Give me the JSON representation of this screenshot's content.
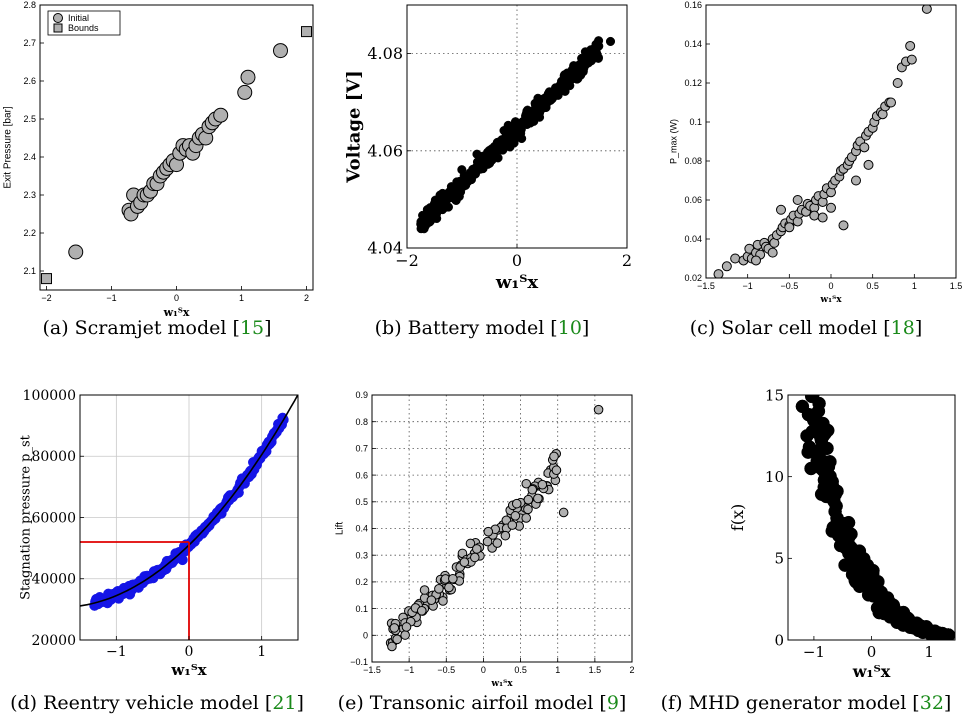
{
  "colors": {
    "marker_gray": "#b0b0b0",
    "marker_black": "#000000",
    "marker_blue": "#1515e6",
    "annot_red": "#e00000",
    "ref_green": "#1a8a1a"
  },
  "panels": [
    {
      "caption": {
        "prefix": "(a) Scramjet model [",
        "ref": "15",
        "suffix": "]"
      },
      "chart_data": {
        "type": "scatter",
        "xlabel": "w₁ᵀx",
        "ylabel": "Exit Pressure [bar]",
        "xlim": [
          -2.1,
          2.1
        ],
        "ylim": [
          2.05,
          2.8
        ],
        "xticks": [
          -2,
          -1,
          0,
          1,
          2
        ],
        "yticks": [
          2.1,
          2.2,
          2.3,
          2.4,
          2.5,
          2.6,
          2.7,
          2.8
        ],
        "grid": false,
        "legend": "top-left",
        "series": [
          {
            "name": "Initial",
            "marker": "circle-gray",
            "x": [
              -1.55,
              -0.73,
              -0.7,
              -0.66,
              -0.6,
              -0.55,
              -0.5,
              -0.45,
              -0.4,
              -0.35,
              -0.3,
              -0.25,
              -0.2,
              -0.15,
              -0.1,
              -0.05,
              0,
              0.05,
              0.1,
              0.15,
              0.2,
              0.25,
              0.3,
              0.35,
              0.4,
              0.45,
              0.5,
              0.55,
              0.6,
              0.68,
              1.05,
              1.1,
              1.6
            ],
            "y": [
              2.15,
              2.26,
              2.25,
              2.3,
              2.27,
              2.28,
              2.3,
              2.3,
              2.31,
              2.33,
              2.33,
              2.35,
              2.36,
              2.37,
              2.38,
              2.39,
              2.38,
              2.41,
              2.43,
              2.42,
              2.43,
              2.41,
              2.43,
              2.45,
              2.46,
              2.45,
              2.48,
              2.49,
              2.5,
              2.51,
              2.57,
              2.61,
              2.68
            ]
          },
          {
            "name": "Bounds",
            "marker": "square-gray",
            "x": [
              -2,
              2
            ],
            "y": [
              2.08,
              2.73
            ]
          }
        ]
      }
    },
    {
      "caption": {
        "prefix": "(b) Battery model [",
        "ref": "10",
        "suffix": "]"
      },
      "chart_data": {
        "type": "scatter",
        "xlabel": "w₁ᵀx",
        "ylabel": "Voltage [V]",
        "xlim": [
          -2,
          2
        ],
        "ylim": [
          4.04,
          4.09
        ],
        "xticks": [
          -2,
          0,
          2
        ],
        "yticks": [
          4.04,
          4.06,
          4.08
        ],
        "grid": "dotted",
        "series": [
          {
            "marker": "circle-black",
            "linear_band": {
              "x_from": -1.75,
              "x_to": 1.5,
              "y_at_from": 4.045,
              "y_at_to": 4.081,
              "count": 450,
              "noise": 0.0009
            },
            "x": [
              1.7
            ],
            "y": [
              4.0825
            ]
          }
        ]
      }
    },
    {
      "caption": {
        "prefix": "(c) Solar cell model [",
        "ref": "18",
        "suffix": "]"
      },
      "chart_data": {
        "type": "scatter",
        "xlabel": "w₁ᵀx",
        "ylabel": "P_max (W)",
        "xlim": [
          -1.5,
          1.5
        ],
        "ylim": [
          0.02,
          0.16
        ],
        "xticks": [
          -1.5,
          -1,
          -0.5,
          0,
          0.5,
          1,
          1.5
        ],
        "yticks": [
          0.02,
          0.04,
          0.06,
          0.08,
          0.1,
          0.12,
          0.14,
          0.16
        ],
        "grid": false,
        "series": [
          {
            "marker": "circle-gray",
            "x": [
              -1.35,
              -1.25,
              -1.15,
              -1.05,
              -1.0,
              -0.98,
              -0.95,
              -0.9,
              -0.88,
              -0.85,
              -0.8,
              -0.78,
              -0.75,
              -0.7,
              -0.68,
              -0.65,
              -0.6,
              -0.58,
              -0.55,
              -0.5,
              -0.48,
              -0.45,
              -0.4,
              -0.38,
              -0.35,
              -0.3,
              -0.28,
              -0.25,
              -0.2,
              -0.18,
              -0.15,
              -0.1,
              -0.08,
              -0.05,
              0,
              0.02,
              0.05,
              0.1,
              0.12,
              0.15,
              0.2,
              0.22,
              0.25,
              0.3,
              0.32,
              0.35,
              0.4,
              0.42,
              0.45,
              0.5,
              0.52,
              0.55,
              0.6,
              0.62,
              0.65,
              0.7,
              0.72,
              0.8,
              0.85,
              0.9,
              0.95,
              0.97,
              1.15,
              -0.6,
              -0.4,
              -0.2,
              0,
              0.15,
              0.3,
              -0.9,
              -0.7,
              -0.5,
              -0.1,
              0.45
            ],
            "y": [
              0.022,
              0.026,
              0.03,
              0.029,
              0.031,
              0.035,
              0.03,
              0.033,
              0.037,
              0.032,
              0.038,
              0.036,
              0.035,
              0.04,
              0.038,
              0.042,
              0.044,
              0.046,
              0.048,
              0.047,
              0.05,
              0.052,
              0.049,
              0.053,
              0.055,
              0.054,
              0.058,
              0.057,
              0.056,
              0.06,
              0.062,
              0.059,
              0.063,
              0.066,
              0.064,
              0.068,
              0.07,
              0.072,
              0.075,
              0.076,
              0.078,
              0.08,
              0.082,
              0.085,
              0.088,
              0.09,
              0.087,
              0.093,
              0.095,
              0.097,
              0.1,
              0.103,
              0.105,
              0.104,
              0.108,
              0.11,
              0.11,
              0.12,
              0.128,
              0.131,
              0.139,
              0.132,
              0.158,
              0.055,
              0.06,
              0.052,
              0.056,
              0.047,
              0.07,
              0.029,
              0.033,
              0.046,
              0.051,
              0.078
            ]
          }
        ]
      }
    },
    {
      "caption": {
        "prefix": "(d) Reentry vehicle model [",
        "ref": "21",
        "suffix": "]"
      },
      "chart_data": {
        "type": "scatter",
        "xlabel": "w₁ᵀx",
        "ylabel": "Stagnation pressure p_st",
        "xlim": [
          -1.5,
          1.5
        ],
        "ylim": [
          20000,
          100000
        ],
        "xticks": [
          -1,
          0,
          1
        ],
        "yticks": [
          20000,
          40000,
          60000,
          80000,
          100000
        ],
        "grid": "solid",
        "series": [
          {
            "marker": "circle-blue",
            "dense_x_from": -1.3,
            "dense_x_to": 1.3,
            "count": 220
          },
          {
            "fit_line": {
              "a": 51000,
              "b": 23000,
              "c": 6500
            },
            "color": "black"
          }
        ],
        "annotation": {
          "x": 0,
          "y": 52000,
          "color": "red"
        }
      }
    },
    {
      "caption": {
        "prefix": "(e) Transonic airfoil model [",
        "ref": "9",
        "suffix": "]"
      },
      "chart_data": {
        "type": "scatter",
        "xlabel": "w₁ᵀx",
        "ylabel": "Lift",
        "xlim": [
          -1.5,
          2
        ],
        "ylim": [
          -0.1,
          0.9
        ],
        "xticks": [
          -1.5,
          -1,
          -0.5,
          0,
          0.5,
          1,
          1.5,
          2
        ],
        "yticks": [
          -0.1,
          0,
          0.1,
          0.2,
          0.3,
          0.4,
          0.5,
          0.6,
          0.7,
          0.8,
          0.9
        ],
        "grid": "dotted",
        "series": [
          {
            "marker": "circle-gray",
            "linear_band": {
              "x_from": -1.25,
              "x_to": 1.0,
              "y_at_from": -0.01,
              "y_at_to": 0.61,
              "count": 130,
              "noise": 0.03
            },
            "x": [
              1.55,
              1.08,
              0.98,
              0.95
            ],
            "y": [
              0.845,
              0.46,
              0.68,
              0.67
            ]
          }
        ]
      }
    },
    {
      "caption": {
        "prefix": "(f) MHD generator model [",
        "ref": "32",
        "suffix": "]"
      },
      "chart_data": {
        "type": "scatter",
        "xlabel": "w₁ᵀx",
        "ylabel": "f(x)",
        "xlim": [
          -1.45,
          1.45
        ],
        "ylim": [
          0,
          15
        ],
        "xticks": [
          -1,
          0,
          1
        ],
        "yticks": [
          0,
          5,
          10,
          15
        ],
        "grid": false,
        "series": [
          {
            "marker": "circle-black",
            "decay": {
              "x_from": -1.1,
              "x_to": 1.35,
              "a": 3.5,
              "k": 1.45,
              "count": 300
            },
            "x": [
              -1.2,
              -1.12,
              -1.1,
              -1.05
            ],
            "y": [
              14.3,
              12.5,
              11.5,
              10.5
            ]
          }
        ]
      }
    }
  ]
}
